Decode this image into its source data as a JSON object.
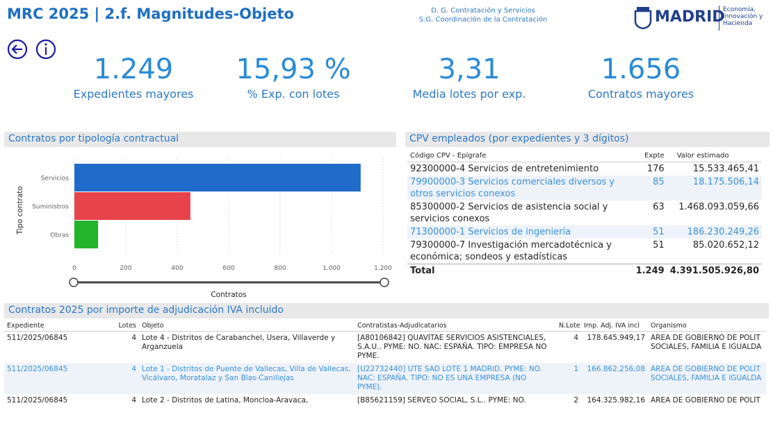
{
  "header": {
    "title": "MRC 2025 | 2.f. Magnitudes-Objeto",
    "center_lines": [
      "D. G. Contratación y Servicios",
      "S.G. Coordinación de la Contratación"
    ],
    "logo": "MADRID",
    "logo_sub": [
      "Economía,",
      "Innovación y",
      "Hacienda"
    ]
  },
  "kpis": [
    {
      "value": "1.249",
      "label": "Expedientes mayores"
    },
    {
      "value": "15,93 %",
      "label": "% Exp. con lotes"
    },
    {
      "value": "3,31",
      "label": "Media lotes por exp."
    },
    {
      "value": "1.656",
      "label": "Contratos mayores"
    }
  ],
  "chart_data": {
    "type": "hbar",
    "title": "Contratos por tipología contractual",
    "y_label": "Tipo contrato",
    "x_label": "Contratos",
    "categories": [
      "Servicios",
      "Suministros",
      "Obras"
    ],
    "values": [
      1113,
      451,
      92
    ],
    "colors": [
      "#1f6bc9",
      "#e8434a",
      "#22b52b"
    ],
    "xlim": [
      0,
      1200
    ],
    "xticks": [
      0,
      200,
      400,
      600,
      800,
      {
        "value": 1000,
        "label": "1.000"
      },
      {
        "value": 1200,
        "label": "1.200"
      }
    ],
    "grid": true
  },
  "cpv_table": {
    "title": "CPV empleados (por expedientes y 3 dígitos)",
    "columns": [
      "Código CPV - Epígrafe",
      "Expte",
      "Valor estimado"
    ],
    "rows": [
      [
        "92300000-4 Servicios de entretenimiento",
        "176",
        "15.533.465,41"
      ],
      [
        "79900000-3 Servicios comerciales diversos y otros servicios conexos",
        "85",
        "18.175.506,14"
      ],
      [
        "85300000-2 Servicios de asistencia social y servicios conexos",
        "63",
        "1.468.093.059,66"
      ],
      [
        "71300000-1 Servicios de ingeniería",
        "51",
        "186.230.249,26"
      ],
      [
        "79300000-7 Investigación mercadotécnica y económica; sondeos y estadísticas",
        "51",
        "85.020.652,12"
      ]
    ],
    "total": [
      "Total",
      "1.249",
      "4.391.505.926,80"
    ]
  },
  "contracts_table": {
    "title": "Contratos 2025 por importe de adjudicación IVA incluido",
    "columns": [
      "Expediente",
      "Lotes",
      "Objeto",
      "Contratistas-Adjudicatarios",
      "N.Lote",
      "Imp. Adj. IVA incl",
      "Organismo"
    ],
    "rows": [
      [
        "511/2025/06845",
        "4",
        "Lote 4 - Distritos de Carabanchel, Usera, Villaverde y Arganzuela",
        "[A80106842] QUAVITAE SERVICIOS ASISTENCIALES, S.A.U.. PYME: NO. NAC: ESPAÑA. TIPO: EMPRESA NO PYME.",
        "4",
        "178.645.949,17",
        [
          "ÁREA DE GOBIERNO DE POLÍT",
          "SOCIALES, FAMILIA E IGUALDA"
        ]
      ],
      [
        "511/2025/06845",
        "4",
        "Lote 1 - Distritos de Puente de Vallecas, Villa de Vallecas, Vicálvaro, Moratalaz y San Blas-Canillejas",
        "[U22732440] UTE SAD LOTE 1 MADRID. PYME: NO. NAC: ESPAÑA. TIPO: NO ES UNA EMPRESA (NO PYME).",
        "1",
        "166.862.256,08",
        [
          "ÁREA DE GOBIERNO DE POLÍT",
          "SOCIALES, FAMILIA E IGUALDA"
        ]
      ],
      [
        "511/2025/06845",
        "4",
        "Lote 2 - Distritos de Latina, Moncloa-Aravaca,",
        "[B85621159] SERVEO SOCIAL, S.L.. PYME: NO.",
        "2",
        "164.325.982,16",
        [
          "ÁREA DE GOBIERNO DE POLÍT"
        ]
      ]
    ]
  }
}
